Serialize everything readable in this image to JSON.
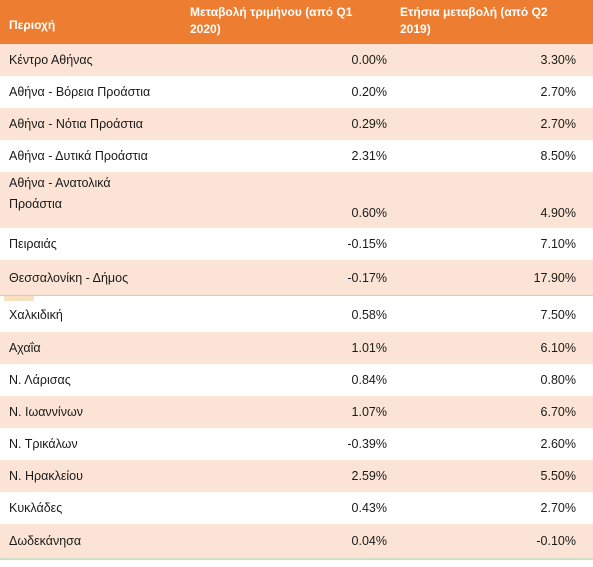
{
  "header": {
    "region": "Περιοχή",
    "quarter_line1": "Μεταβολή τριμήνου (από Q1",
    "quarter_line2": "2020)",
    "annual_line1": "Ετήσια μεταβολή (από Q2",
    "annual_line2": "2019)"
  },
  "rows": [
    {
      "region": "Κέντρο Αθήνας",
      "quarter": "0.00%",
      "annual": "3.30%"
    },
    {
      "region": "Αθήνα - Βόρεια Προάστια",
      "quarter": "0.20%",
      "annual": "2.70%"
    },
    {
      "region": "Αθήνα - Νότια Προάστια",
      "quarter": "0.29%",
      "annual": "2.70%"
    },
    {
      "region": "Αθήνα - Δυτικά Προάστια",
      "quarter": "2.31%",
      "annual": "8.50%"
    },
    {
      "region_line1": "Αθήνα - Ανατολικά",
      "region_line2": "Προάστια",
      "quarter": "0.60%",
      "annual": "4.90%"
    },
    {
      "region": "Πειραιάς",
      "quarter": "-0.15%",
      "annual": "7.10%"
    },
    {
      "region": "Θεσσαλονίκη - Δήμος",
      "quarter": "-0.17%",
      "annual": "17.90%"
    },
    {
      "region": "Χαλκιδική",
      "quarter": "0.58%",
      "annual": "7.50%"
    },
    {
      "region": "Αχαΐα",
      "quarter": "1.01%",
      "annual": "6.10%"
    },
    {
      "region": "Ν. Λάρισας",
      "quarter": "0.84%",
      "annual": "0.80%"
    },
    {
      "region": "Ν. Ιωαννίνων",
      "quarter": "1.07%",
      "annual": "6.70%"
    },
    {
      "region": "Ν. Τρικάλων",
      "quarter": "-0.39%",
      "annual": "2.60%"
    },
    {
      "region": "Ν. Ηρακλείου",
      "quarter": "2.59%",
      "annual": "5.50%"
    },
    {
      "region": "Κυκλάδες",
      "quarter": "0.43%",
      "annual": "2.70%"
    },
    {
      "region": "Δωδεκάνησα",
      "quarter": "0.04%",
      "annual": "-0.10%"
    }
  ],
  "colors": {
    "header_bg": "#ed7d31",
    "header_text": "#ffffff",
    "row_shade": "#fbe4d5"
  }
}
